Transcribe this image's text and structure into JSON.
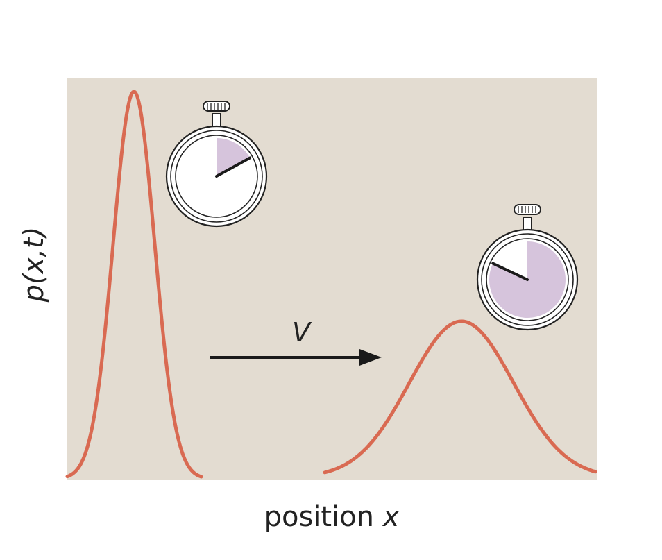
{
  "figure": {
    "y_axis_label": "p(x,t)",
    "x_axis_label": "position",
    "x_axis_variable": "x",
    "velocity_label": "V",
    "colors": {
      "background_panel": "#e3dcd1",
      "curve": "#d96a52",
      "arrow": "#1a1a1a",
      "elapsed_fill": "#d6c4dc",
      "watch_outline": "#222222"
    }
  },
  "stopwatches": [
    {
      "id": "early",
      "icon": "stopwatch-icon",
      "elapsed_fraction": 0.17
    },
    {
      "id": "late",
      "icon": "stopwatch-icon",
      "elapsed_fraction": 0.82
    }
  ],
  "distributions": [
    {
      "id": "early",
      "shape": "narrow-tall"
    },
    {
      "id": "late",
      "shape": "wide-short"
    }
  ]
}
